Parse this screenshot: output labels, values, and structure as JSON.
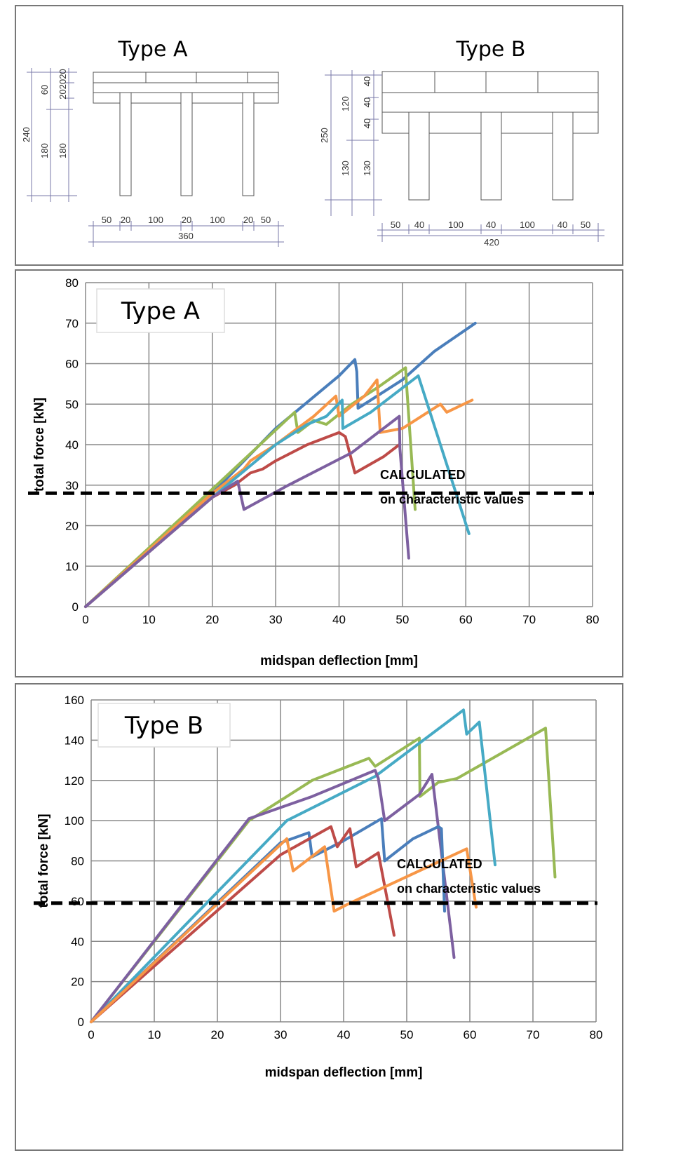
{
  "diagram": {
    "type_a": {
      "title": "Type A",
      "vertical_dims": [
        "240",
        "180",
        "60",
        "180",
        "202020"
      ],
      "horizontal_dims": [
        "50",
        "20",
        "100",
        "20",
        "100",
        "20",
        "50"
      ],
      "total_width": "360"
    },
    "type_b": {
      "title": "Type B",
      "vertical_dims": [
        "250",
        "120",
        "130",
        "40",
        "40",
        "40",
        "130"
      ],
      "horizontal_dims": [
        "50",
        "40",
        "100",
        "40",
        "100",
        "40",
        "50"
      ],
      "total_width": "420"
    }
  },
  "colors": {
    "blue": "#4A7EBB",
    "red": "#BE4B48",
    "green": "#98B954",
    "purple": "#7D60A0",
    "cyan": "#46AAC5",
    "orange": "#F79646"
  },
  "chart_data": [
    {
      "type": "line",
      "title": "Type A",
      "xlabel": "midspan deflection [mm]",
      "ylabel": "total force [kN]",
      "xlim": [
        0,
        80
      ],
      "ylim": [
        0,
        80
      ],
      "xticks": [
        "0",
        "10",
        "20",
        "30",
        "40",
        "50",
        "60",
        "70",
        "80"
      ],
      "yticks": [
        "0",
        "10",
        "20",
        "30",
        "40",
        "50",
        "60",
        "70",
        "80"
      ],
      "grid": true,
      "reference_line": {
        "y": 28,
        "style": "dashed",
        "label_line1": "CALCULATED",
        "label_line2": "on characteristic values"
      },
      "series": [
        {
          "color": "#4A7EBB",
          "points": [
            [
              0,
              0
            ],
            [
              20,
              28
            ],
            [
              30,
              44
            ],
            [
              40,
              57
            ],
            [
              42.5,
              61
            ],
            [
              42.8,
              58
            ],
            [
              43,
              49
            ],
            [
              45,
              51
            ],
            [
              50,
              56
            ],
            [
              55,
              63
            ],
            [
              61.5,
              70
            ]
          ]
        },
        {
          "color": "#98B954",
          "points": [
            [
              0,
              0
            ],
            [
              20,
              29
            ],
            [
              33,
              48
            ],
            [
              33.5,
              43
            ],
            [
              36,
              46
            ],
            [
              38,
              45
            ],
            [
              42,
              50
            ],
            [
              46,
              54
            ],
            [
              50.5,
              59
            ],
            [
              50.6,
              56
            ],
            [
              52,
              24
            ]
          ]
        },
        {
          "color": "#F79646",
          "points": [
            [
              0,
              0
            ],
            [
              20,
              28
            ],
            [
              25,
              34
            ],
            [
              26,
              36
            ],
            [
              30,
              40
            ],
            [
              36,
              47
            ],
            [
              39.5,
              52
            ],
            [
              40,
              47
            ],
            [
              44,
              52
            ],
            [
              46,
              56
            ],
            [
              46.5,
              43
            ],
            [
              50,
              44
            ],
            [
              56,
              50
            ],
            [
              57,
              48
            ],
            [
              61,
              51
            ]
          ]
        },
        {
          "color": "#46AAC5",
          "points": [
            [
              0,
              0
            ],
            [
              20,
              27
            ],
            [
              30,
              40
            ],
            [
              35,
              45
            ],
            [
              38,
              47
            ],
            [
              40.5,
              51
            ],
            [
              40.6,
              44
            ],
            [
              45,
              48
            ],
            [
              52.5,
              57
            ],
            [
              60.5,
              18
            ]
          ]
        },
        {
          "color": "#BE4B48",
          "points": [
            [
              0,
              0
            ],
            [
              20,
              27
            ],
            [
              23.5,
              30
            ],
            [
              26,
              33
            ],
            [
              28,
              34
            ],
            [
              30,
              36
            ],
            [
              35,
              40
            ],
            [
              40,
              43
            ],
            [
              41,
              42
            ],
            [
              42.5,
              33
            ],
            [
              47,
              37
            ],
            [
              49.5,
              40
            ]
          ]
        },
        {
          "color": "#7D60A0",
          "points": [
            [
              0,
              0
            ],
            [
              20,
              27
            ],
            [
              24,
              31
            ],
            [
              25,
              24
            ],
            [
              32,
              30
            ],
            [
              42,
              38
            ],
            [
              49.5,
              47
            ],
            [
              49.6,
              39
            ],
            [
              51,
              12
            ]
          ]
        }
      ]
    },
    {
      "type": "line",
      "title": "Type B",
      "xlabel": "midspan deflection [mm]",
      "ylabel": "total force [kN]",
      "xlim": [
        0,
        80
      ],
      "ylim": [
        0,
        160
      ],
      "xticks": [
        "0",
        "10",
        "20",
        "30",
        "40",
        "50",
        "60",
        "70",
        "80"
      ],
      "yticks": [
        "0",
        "20",
        "40",
        "60",
        "80",
        "100",
        "120",
        "140",
        "160"
      ],
      "grid": true,
      "reference_line": {
        "y": 59,
        "style": "dashed",
        "label_line1": "CALCULATED",
        "label_line2": "on characteristic values"
      },
      "series": [
        {
          "color": "#98B954",
          "points": [
            [
              0,
              0
            ],
            [
              25,
              100
            ],
            [
              35,
              120
            ],
            [
              44,
              131
            ],
            [
              45,
              127
            ],
            [
              48,
              133
            ],
            [
              52,
              141
            ],
            [
              52.1,
              112
            ],
            [
              55,
              119
            ],
            [
              58,
              121
            ],
            [
              72,
              146
            ],
            [
              73.5,
              72
            ]
          ]
        },
        {
          "color": "#46AAC5",
          "points": [
            [
              0,
              0
            ],
            [
              31,
              100
            ],
            [
              45,
              122
            ],
            [
              59,
              155
            ],
            [
              59.5,
              143
            ],
            [
              61.5,
              149
            ],
            [
              64,
              78
            ]
          ]
        },
        {
          "color": "#7D60A0",
          "points": [
            [
              0,
              0
            ],
            [
              25,
              101
            ],
            [
              35,
              112
            ],
            [
              45,
              125
            ],
            [
              45.5,
              121
            ],
            [
              46.5,
              100
            ],
            [
              52,
              113
            ],
            [
              54,
              123
            ],
            [
              57.5,
              32
            ]
          ]
        },
        {
          "color": "#4A7EBB",
          "points": [
            [
              0,
              0
            ],
            [
              30,
              89
            ],
            [
              34.5,
              94
            ],
            [
              35,
              82
            ],
            [
              40,
              90
            ],
            [
              46,
              101
            ],
            [
              46.5,
              80
            ],
            [
              51,
              91
            ],
            [
              55,
              97
            ],
            [
              55.5,
              96
            ],
            [
              56,
              55
            ]
          ]
        },
        {
          "color": "#BE4B48",
          "points": [
            [
              0,
              0
            ],
            [
              30,
              83
            ],
            [
              38,
              97
            ],
            [
              39,
              87
            ],
            [
              41,
              96
            ],
            [
              42,
              77
            ],
            [
              45.5,
              84
            ],
            [
              48,
              43
            ]
          ]
        },
        {
          "color": "#F79646",
          "points": [
            [
              0,
              0
            ],
            [
              31,
              91
            ],
            [
              32,
              75
            ],
            [
              37,
              87
            ],
            [
              38.5,
              55
            ],
            [
              41,
              59
            ],
            [
              59.5,
              86
            ],
            [
              61,
              57
            ]
          ]
        }
      ]
    }
  ]
}
